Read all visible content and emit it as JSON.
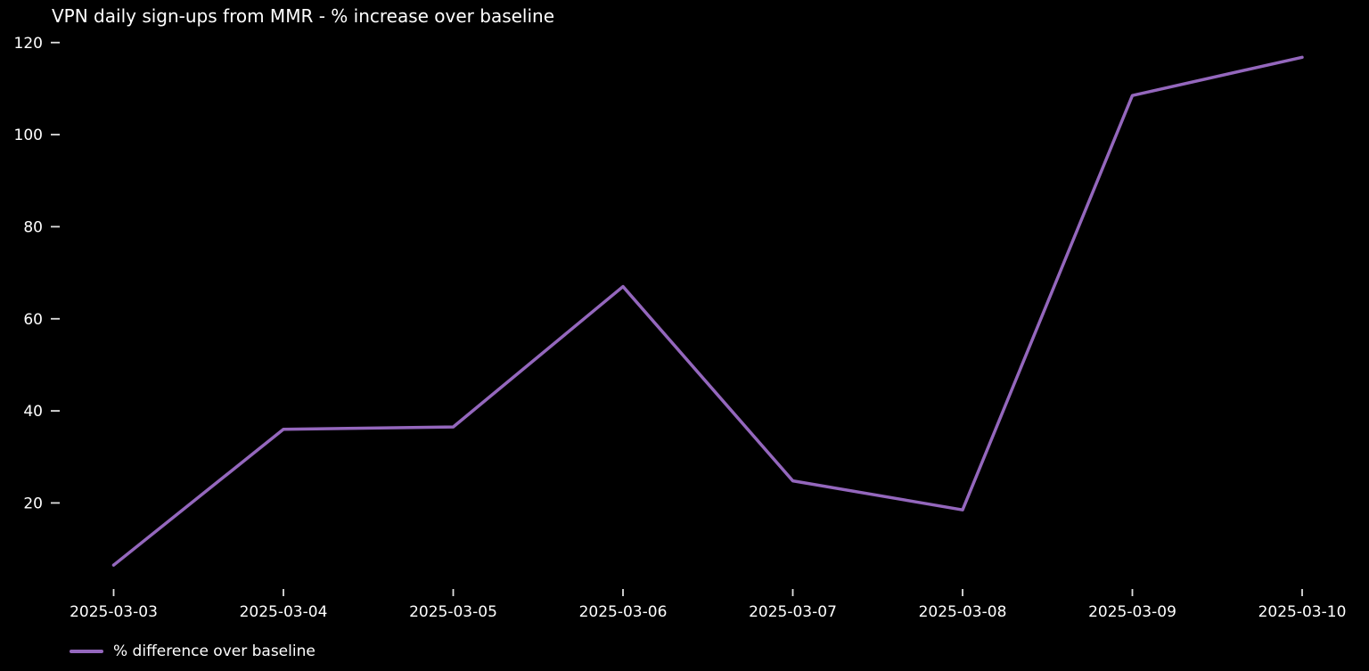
{
  "chart_data": {
    "type": "line",
    "title": "VPN daily sign-ups from MMR - % increase over baseline",
    "x": [
      "2025-03-03",
      "2025-03-04",
      "2025-03-05",
      "2025-03-06",
      "2025-03-07",
      "2025-03-08",
      "2025-03-09",
      "2025-03-10"
    ],
    "series": [
      {
        "name": "% difference over baseline",
        "values": [
          6.5,
          36,
          36.5,
          67,
          24.8,
          18.5,
          108.5,
          116.8
        ]
      }
    ],
    "xlabel": "",
    "ylabel": "",
    "yticks": [
      20,
      40,
      60,
      80,
      100,
      120
    ],
    "ylim": [
      1.5,
      121.5
    ],
    "grid": false,
    "legend_position": "lower-left",
    "line_color": "#9467bd",
    "background_color": "#000000",
    "text_color": "#ffffff",
    "tick_color": "#e0e0e0"
  }
}
